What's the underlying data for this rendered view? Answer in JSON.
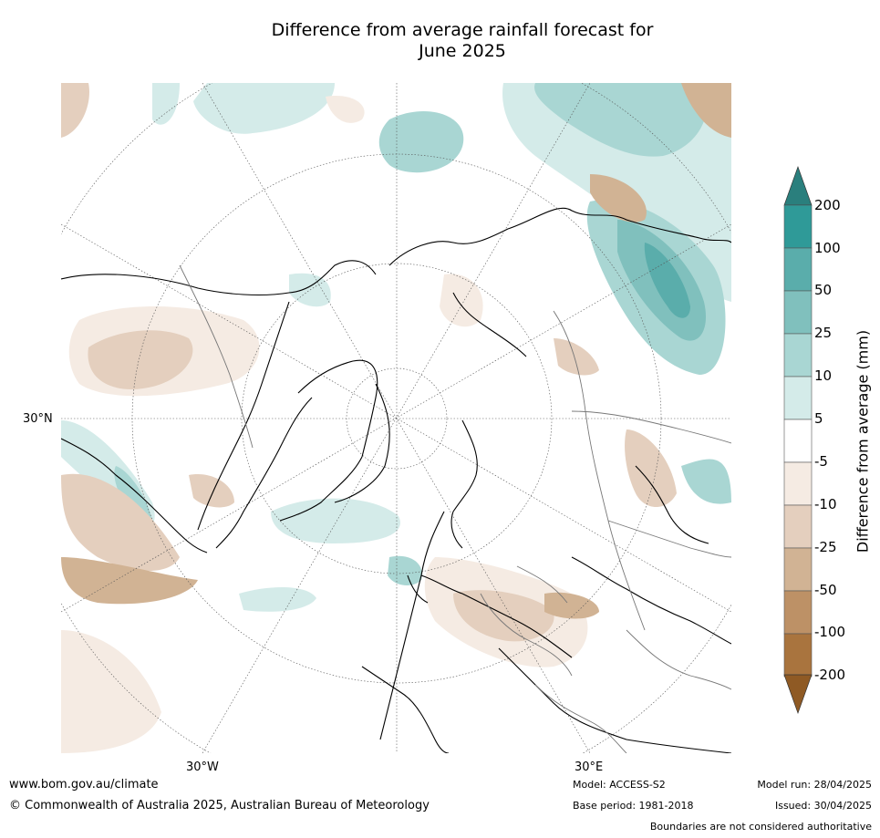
{
  "title": {
    "line1": "Difference from average rainfall forecast for",
    "line2": "June 2025"
  },
  "map": {
    "projection": "north-polar-stereographic",
    "lat_labels": [
      "30°N"
    ],
    "lon_labels": [
      "30°W",
      "30°E"
    ]
  },
  "colorbar": {
    "label": "Difference from average (mm)",
    "ticks": [
      "200",
      "100",
      "50",
      "25",
      "10",
      "5",
      "-5",
      "-10",
      "-25",
      "-50",
      "-100",
      "-200"
    ],
    "bands": [
      {
        "range": "100 to 200",
        "color": "#2f9a98"
      },
      {
        "range": "50 to 100",
        "color": "#5aadab"
      },
      {
        "range": "25 to 50",
        "color": "#80c0bd"
      },
      {
        "range": "10 to 25",
        "color": "#a9d6d3"
      },
      {
        "range": "5 to 10",
        "color": "#d4ebe9"
      },
      {
        "range": "-5 to 5",
        "color": "#ffffff"
      },
      {
        "range": "-10 to -5",
        "color": "#f5ebe3"
      },
      {
        "range": "-25 to -10",
        "color": "#e4cfbe"
      },
      {
        "range": "-50 to -25",
        "color": "#d1b394"
      },
      {
        "range": "-100 to -50",
        "color": "#bd9166"
      },
      {
        "range": "-200 to -100",
        "color": "#a9743e"
      }
    ],
    "extend_max_color": "#2a7f7d",
    "extend_min_color": "#8f5a24"
  },
  "footer": {
    "website": "www.bom.gov.au/climate",
    "copyright": "© Commonwealth of Australia 2025, Australian Bureau of Meteorology",
    "model": "Model: ACCESS-S2",
    "base_period": "Base period: 1981-2018",
    "model_run": "Model run: 28/04/2025",
    "issued": "Issued: 30/04/2025",
    "disclaimer": "Boundaries are not considered authoritative"
  }
}
